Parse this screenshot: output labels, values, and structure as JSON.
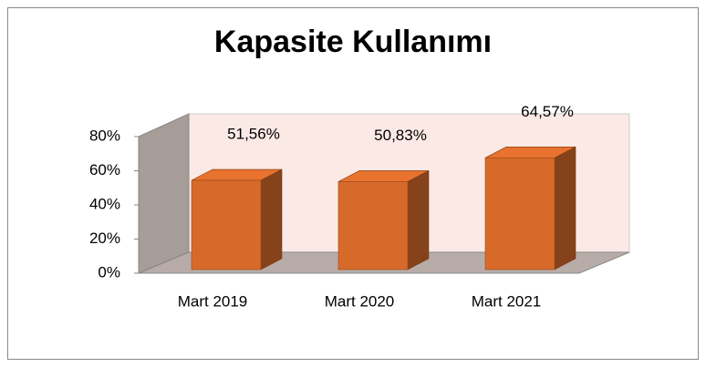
{
  "chart_data": {
    "type": "bar3d",
    "title": "Kapasite Kullanımı",
    "categories": [
      "Mart 2019",
      "Mart 2020",
      "Mart 2021"
    ],
    "values": [
      51.56,
      50.83,
      64.57
    ],
    "value_labels": [
      "51,56%",
      "50,83%",
      "64,57%"
    ],
    "color": "#d76a2b",
    "ylim": [
      0,
      80
    ],
    "yticks": [
      {
        "value": 0,
        "label": "0%"
      },
      {
        "value": 20,
        "label": "20%"
      },
      {
        "value": 40,
        "label": "40%"
      },
      {
        "value": 60,
        "label": "60%"
      },
      {
        "value": 80,
        "label": "80%"
      }
    ]
  }
}
